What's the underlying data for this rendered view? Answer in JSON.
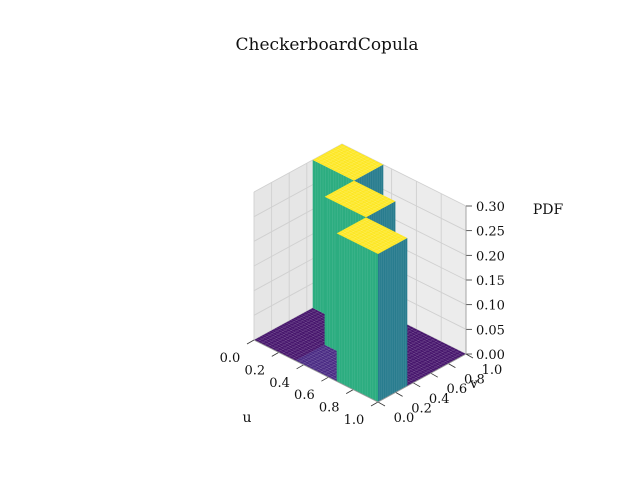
{
  "chart_data": {
    "type": "surface3d",
    "title": "CheckerboardCopula",
    "xlabel": "u",
    "ylabel": "v",
    "zlabel": "PDF",
    "xlim": [
      0.0,
      1.0
    ],
    "ylim": [
      0.0,
      1.0
    ],
    "zlim": [
      0.0,
      0.3
    ],
    "x_ticks": [
      "0.0",
      "0.2",
      "0.4",
      "0.6",
      "0.8",
      "1.0"
    ],
    "y_ticks": [
      "0.0",
      "0.2",
      "0.4",
      "0.6",
      "0.8",
      "1.0"
    ],
    "z_ticks": [
      "0.00",
      "0.05",
      "0.10",
      "0.15",
      "0.20",
      "0.25",
      "0.30"
    ],
    "colormap": "viridis",
    "grid": true,
    "surface": {
      "u_edges": [
        0.0,
        0.333,
        0.667,
        1.0
      ],
      "v_edges": [
        0.0,
        0.333,
        0.667,
        1.0
      ],
      "pdf": [
        [
          0.0,
          0.0,
          0.3
        ],
        [
          0.0,
          0.3,
          0.0
        ],
        [
          0.3,
          0.0,
          0.0
        ]
      ]
    }
  }
}
